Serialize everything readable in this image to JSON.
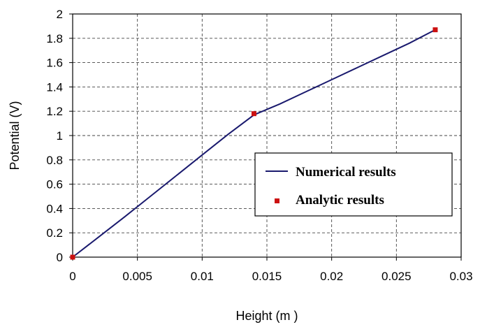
{
  "chart_data": {
    "type": "line",
    "title": "",
    "xlabel": "Height (m )",
    "ylabel": "Potential (V)",
    "xlim": [
      0,
      0.03
    ],
    "ylim": [
      0,
      2
    ],
    "x_ticks": [
      0,
      0.005,
      0.01,
      0.015,
      0.02,
      0.025,
      0.03
    ],
    "x_tick_labels": [
      "0",
      "0.005",
      "0.01",
      "0.015",
      "0.02",
      "0.025",
      "0.03"
    ],
    "y_ticks": [
      0,
      0.2,
      0.4,
      0.6,
      0.8,
      1,
      1.2,
      1.4,
      1.6,
      1.8,
      2
    ],
    "y_tick_labels": [
      "0",
      "0.2",
      "0.4",
      "0.6",
      "0.8",
      "1",
      "1.2",
      "1.4",
      "1.6",
      "1.8",
      "2"
    ],
    "grid": true,
    "grid_style": "dashed",
    "legend_position": "lower-right inside",
    "series": [
      {
        "name": "Numerical results",
        "kind": "line",
        "color": "#1a1a6e",
        "x": [
          0,
          0.002,
          0.004,
          0.006,
          0.008,
          0.01,
          0.012,
          0.014,
          0.016,
          0.018,
          0.02,
          0.022,
          0.024,
          0.026,
          0.028
        ],
        "y": [
          0,
          0.165,
          0.33,
          0.5,
          0.67,
          0.84,
          1.01,
          1.17,
          1.26,
          1.36,
          1.46,
          1.56,
          1.66,
          1.76,
          1.87
        ]
      },
      {
        "name": "Analytic results",
        "kind": "marker",
        "color": "#cc1111",
        "x": [
          0,
          0.014,
          0.028
        ],
        "y": [
          0,
          1.18,
          1.87
        ]
      }
    ]
  }
}
